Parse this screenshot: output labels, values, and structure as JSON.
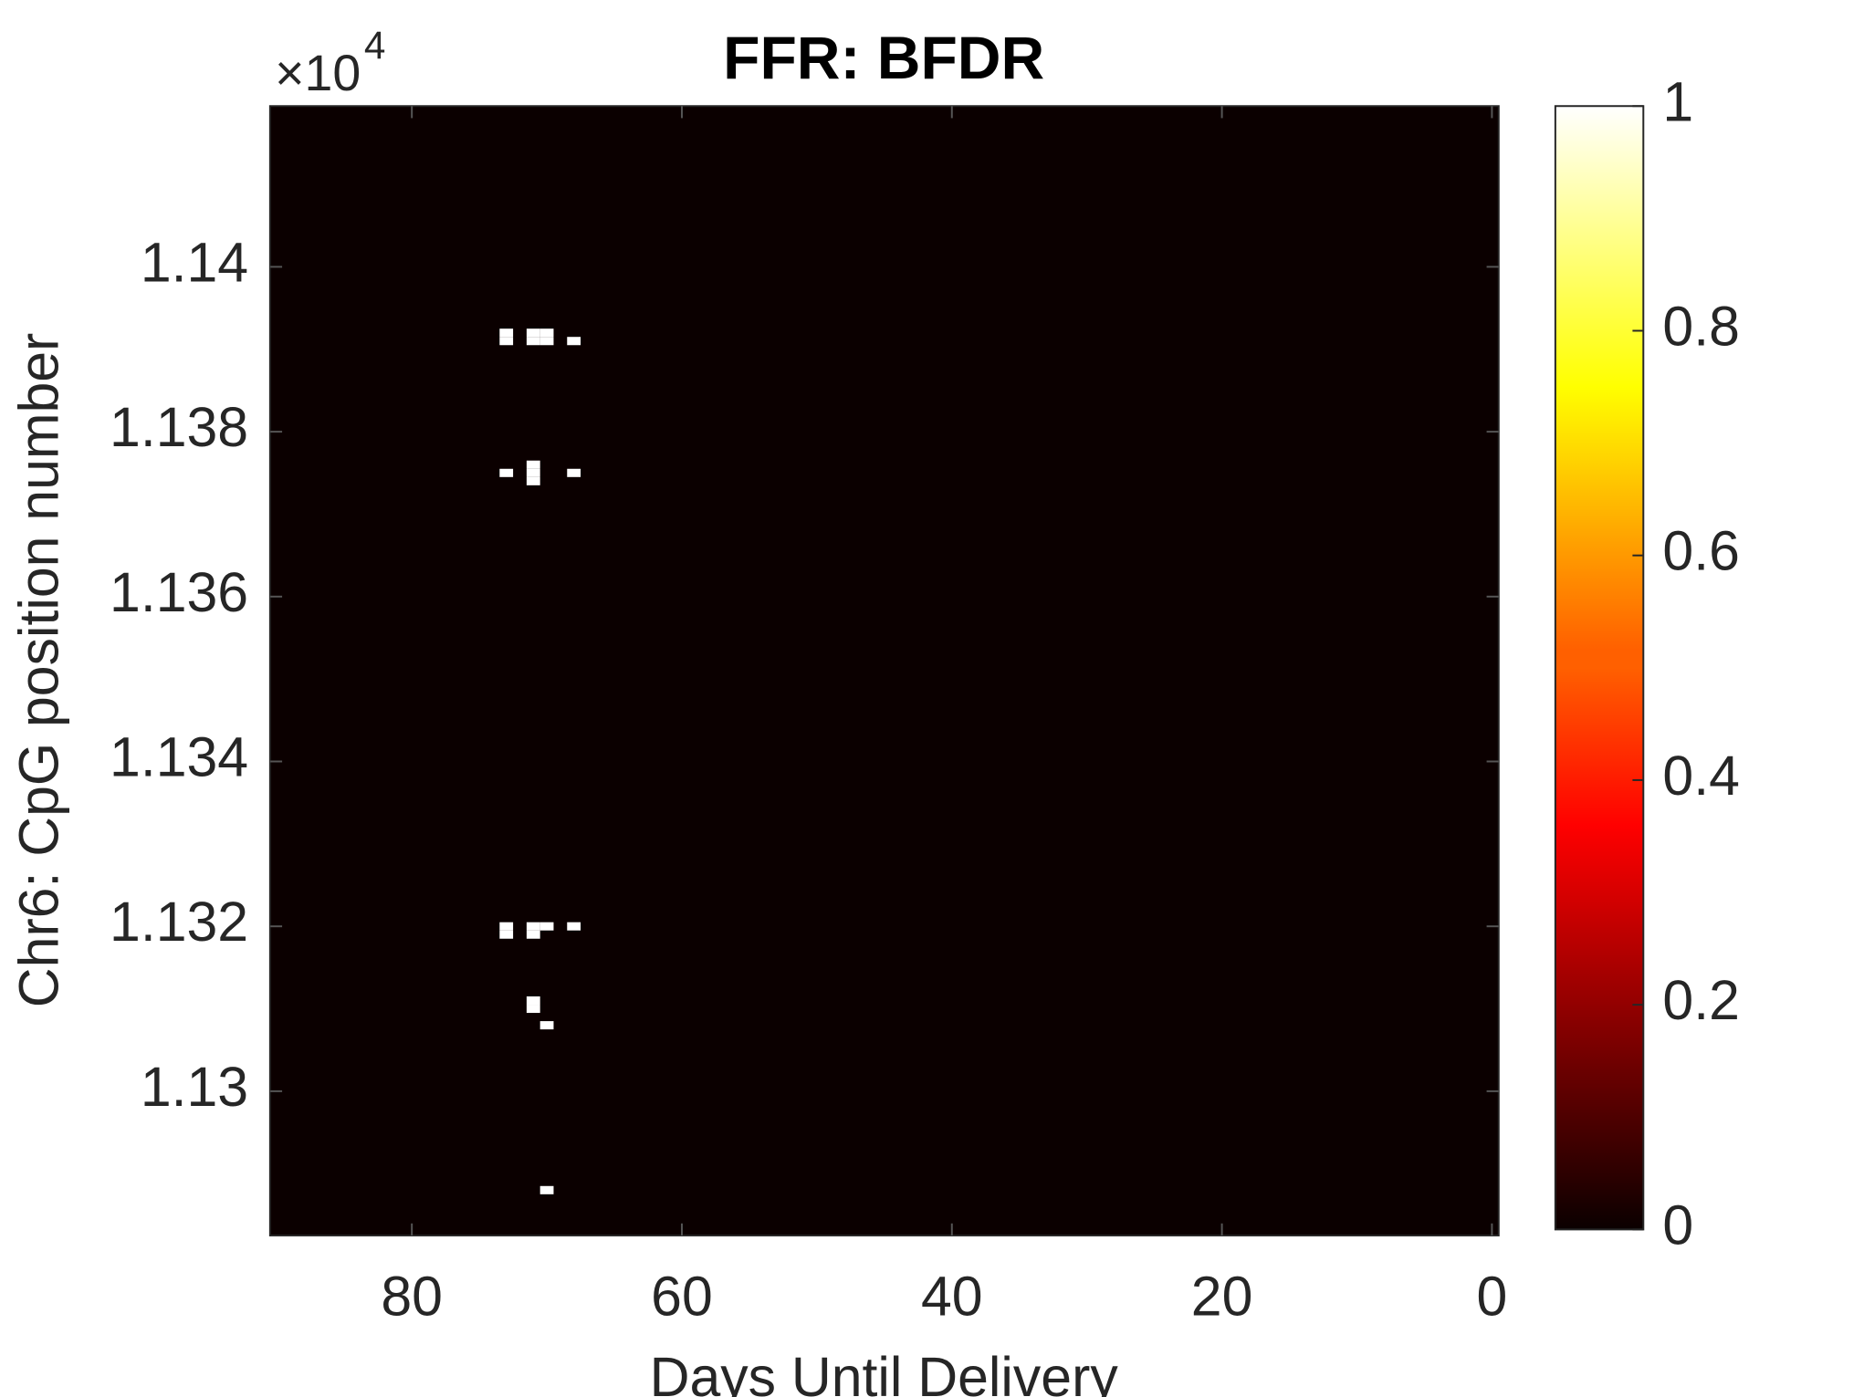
{
  "chart_data": {
    "type": "heatmap",
    "title": "FFR: BFDR",
    "x_label": "Days Until Delivery",
    "y_label": "Chr6: CpG position number",
    "y_scale_label": "×10",
    "y_scale_exponent": "4",
    "colormap": "hot",
    "xlim": [
      90.5,
      -0.5
    ],
    "xticks": [
      80,
      60,
      40,
      20,
      0
    ],
    "ylim": [
      11282.5,
      11419.5
    ],
    "yticks": [
      {
        "value": 11300,
        "label": "1.13"
      },
      {
        "value": 11320,
        "label": "1.132"
      },
      {
        "value": 11340,
        "label": "1.134"
      },
      {
        "value": 11360,
        "label": "1.136"
      },
      {
        "value": 11380,
        "label": "1.138"
      },
      {
        "value": 11400,
        "label": "1.14"
      }
    ],
    "clim": [
      0,
      1
    ],
    "cticks": [
      0,
      0.2,
      0.4,
      0.6,
      0.8,
      1
    ],
    "x": [
      73,
      73,
      73,
      73,
      73,
      71,
      71,
      71,
      71,
      71,
      71,
      71,
      71,
      71,
      70,
      70,
      70,
      70,
      70,
      68,
      68,
      68
    ],
    "y": [
      11391,
      11392,
      11375,
      11320,
      11319,
      11391,
      11392,
      11374,
      11375,
      11376,
      11320,
      11319,
      11311,
      11310,
      11391,
      11392,
      11320,
      11308,
      11288,
      11391,
      11375,
      11320
    ],
    "values": [
      1,
      1,
      1,
      1,
      1,
      1,
      1,
      1,
      1,
      1,
      1,
      1,
      1,
      1,
      1,
      1,
      1,
      1,
      1,
      1,
      1,
      1
    ]
  }
}
